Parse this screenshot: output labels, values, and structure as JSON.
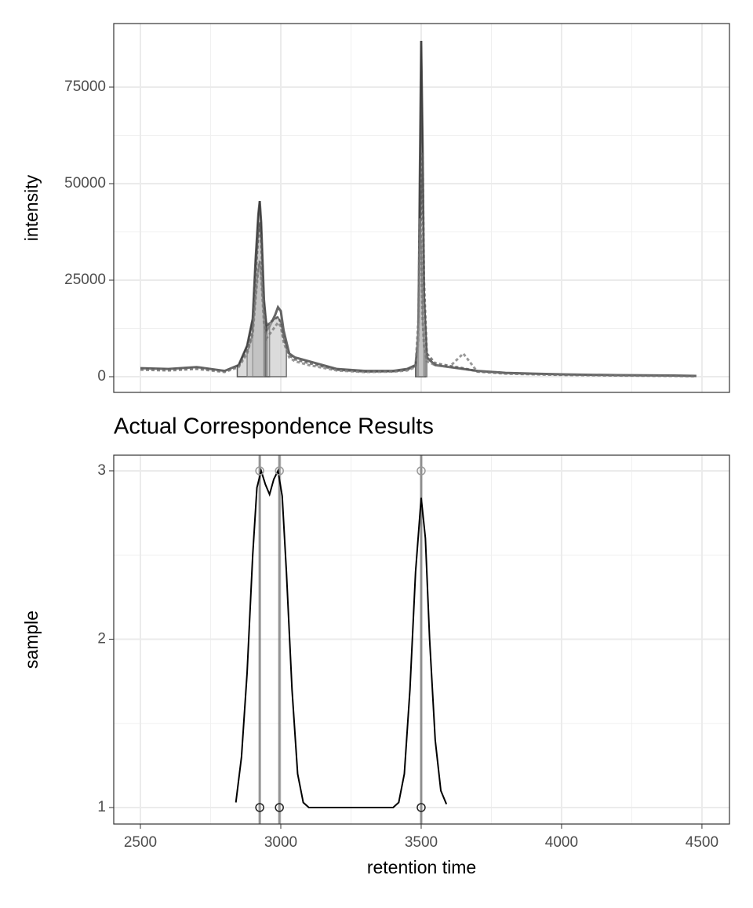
{
  "chart_data": [
    {
      "type": "line",
      "y_label": "intensity",
      "xlim": [
        2405,
        4598
      ],
      "xticks": [
        2500,
        3000,
        3500,
        4000,
        4500
      ],
      "ylim": [
        -4065,
        91463
      ],
      "yticks": [
        0,
        25000,
        50000,
        75000
      ],
      "grid": true,
      "fill_color": "#bdbdbd",
      "x": [
        2500,
        2600,
        2700,
        2800,
        2850,
        2880,
        2900,
        2910,
        2920,
        2925,
        2930,
        2940,
        2950,
        2960,
        2980,
        2990,
        3000,
        3010,
        3030,
        3050,
        3100,
        3200,
        3300,
        3400,
        3450,
        3480,
        3490,
        3495,
        3500,
        3505,
        3510,
        3520,
        3550,
        3600,
        3650,
        3700,
        3800,
        3900,
        4000,
        4200,
        4400,
        4480
      ],
      "series": [
        {
          "color": "#333333",
          "peaks": [
            [
              2845,
              2960
            ],
            [
              3480,
              3515
            ]
          ],
          "values": [
            2200,
            2000,
            2500,
            1500,
            3000,
            8000,
            15000,
            30000,
            42000,
            45500,
            40000,
            20000,
            12000,
            13000,
            16000,
            18000,
            17000,
            12000,
            6000,
            5000,
            4000,
            2000,
            1500,
            1500,
            2000,
            3000,
            10000,
            50000,
            87000,
            60000,
            20000,
            5000,
            3000,
            2500,
            2000,
            1500,
            1000,
            800,
            600,
            400,
            300,
            200
          ]
        },
        {
          "color": "#555555",
          "peaks": [
            [
              2900,
              2945
            ],
            [
              2950,
              3020
            ],
            [
              3490,
              3520
            ]
          ],
          "values": [
            2000,
            1800,
            2200,
            1400,
            2800,
            7000,
            13000,
            26000,
            37000,
            40000,
            35000,
            18000,
            13000,
            14000,
            15000,
            15500,
            14000,
            10000,
            5500,
            4500,
            3500,
            1800,
            1300,
            1400,
            1800,
            2800,
            9000,
            30000,
            45000,
            58000,
            25000,
            6000,
            3500,
            2800,
            2200,
            1400,
            900,
            700,
            500,
            350,
            250,
            150
          ]
        },
        {
          "color": "#777777",
          "peaks": [
            [
              2880,
              2940
            ],
            [
              3485,
              3510
            ]
          ],
          "values": [
            1800,
            1600,
            2000,
            1200,
            2500,
            6000,
            11000,
            20000,
            28000,
            30000,
            26000,
            14000,
            10000,
            11000,
            13000,
            14000,
            13000,
            9000,
            5000,
            4000,
            3000,
            1600,
            1200,
            1300,
            1600,
            2500,
            15000,
            41000,
            35000,
            15000,
            8000,
            4000,
            3000,
            2500,
            6000,
            1300,
            800,
            600,
            450,
            300,
            200,
            100
          ]
        }
      ]
    },
    {
      "type": "density",
      "title": "Actual Correspondence Results",
      "x_label": "retention time",
      "y_label": "sample",
      "xlim": [
        2405,
        4598
      ],
      "xticks": [
        2500,
        3000,
        3500,
        4000,
        4500
      ],
      "ylim": [
        0.902,
        3.093
      ],
      "yticks": [
        1,
        2,
        3
      ],
      "grid": true,
      "line_color": "#000000",
      "x": [
        2840,
        2860,
        2880,
        2900,
        2915,
        2930,
        2945,
        2960,
        2975,
        2990,
        3005,
        3020,
        3040,
        3060,
        3080,
        3100,
        3200,
        3300,
        3400,
        3420,
        3440,
        3460,
        3480,
        3500,
        3515,
        3530,
        3550,
        3570,
        3590
      ],
      "values": [
        1.03,
        1.3,
        1.8,
        2.5,
        2.9,
        3.0,
        2.92,
        2.86,
        2.95,
        3.0,
        2.85,
        2.4,
        1.7,
        1.2,
        1.03,
        1.0,
        1.0,
        1.0,
        1.0,
        1.03,
        1.2,
        1.7,
        2.4,
        2.84,
        2.6,
        2.0,
        1.4,
        1.1,
        1.02
      ],
      "group_lines": [
        2925,
        2995,
        3500
      ],
      "group_color": "#666666",
      "points": [
        {
          "x": 2925,
          "y": 1,
          "color": "#222222"
        },
        {
          "x": 2995,
          "y": 1,
          "color": "#222222"
        },
        {
          "x": 3500,
          "y": 1,
          "color": "#222222"
        },
        {
          "x": 2925,
          "y": 3,
          "color": "#999999"
        },
        {
          "x": 2995,
          "y": 3,
          "color": "#999999"
        },
        {
          "x": 3500,
          "y": 3,
          "color": "#999999"
        }
      ]
    }
  ]
}
